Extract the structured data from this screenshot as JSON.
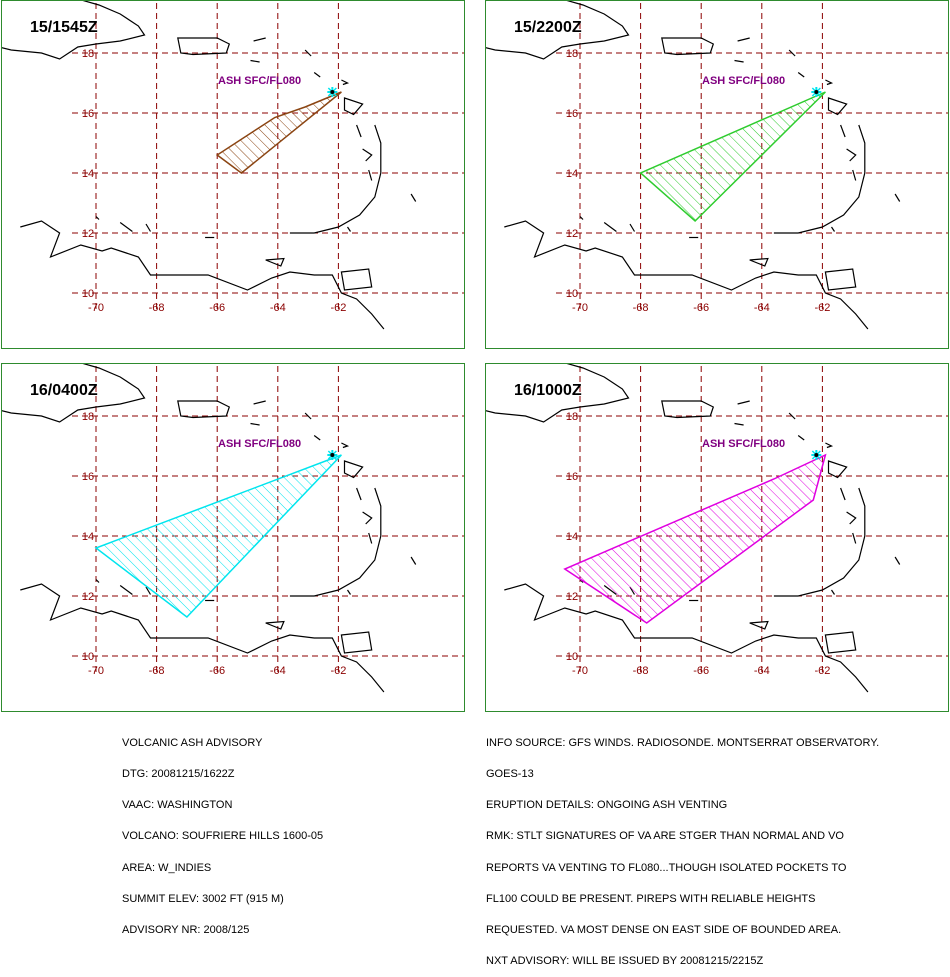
{
  "map": {
    "extent_lon": [
      -71,
      -59
    ],
    "extent_lat": [
      8.5,
      19.5
    ],
    "lon_ticks": [
      "-70",
      "-68",
      "-66",
      "-64",
      "-62"
    ],
    "lat_ticks": [
      "18",
      "16",
      "14",
      "12",
      "10"
    ],
    "gridline_color": "#8b0000",
    "coast_color": "#000000",
    "volcano_color": "#00e5ee",
    "ash_layer_label": "ASH SFC/FL080"
  },
  "panels": [
    {
      "time_label": "15/1545Z",
      "polygon_color": "#8b4513",
      "polygon": [
        [
          -61.9,
          16.7
        ],
        [
          -63.1,
          16.2
        ],
        [
          -64.1,
          15.85
        ],
        [
          -66.0,
          14.6
        ],
        [
          -65.2,
          14.0
        ],
        [
          -61.9,
          16.7
        ]
      ]
    },
    {
      "time_label": "15/2200Z",
      "polygon_color": "#2ecc2e",
      "polygon": [
        [
          -61.9,
          16.7
        ],
        [
          -68.0,
          14.0
        ],
        [
          -66.2,
          12.4
        ],
        [
          -61.9,
          16.7
        ]
      ]
    },
    {
      "time_label": "16/0400Z",
      "polygon_color": "#00e5ee",
      "polygon": [
        [
          -61.9,
          16.7
        ],
        [
          -70.0,
          13.6
        ],
        [
          -67.0,
          11.3
        ],
        [
          -61.9,
          16.7
        ]
      ]
    },
    {
      "time_label": "16/1000Z",
      "polygon_color": "#e000e0",
      "polygon": [
        [
          -61.9,
          16.7
        ],
        [
          -62.3,
          15.2
        ],
        [
          -67.8,
          11.1
        ],
        [
          -70.5,
          12.9
        ],
        [
          -63.6,
          15.9
        ],
        [
          -61.9,
          16.7
        ]
      ]
    }
  ],
  "advisory_left": {
    "lines": [
      "VOLCANIC ASH ADVISORY",
      "DTG: 20081215/1622Z",
      "VAAC: WASHINGTON",
      "VOLCANO: SOUFRIERE HILLS 1600-05",
      "AREA: W_INDIES",
      "SUMMIT ELEV: 3002 FT (915 M)",
      "ADVISORY NR: 2008/125"
    ]
  },
  "advisory_right": {
    "lines": [
      "INFO SOURCE: GFS WINDS. RADIOSONDE. MONTSERRAT OBSERVATORY.",
      "GOES-13",
      "ERUPTION DETAILS: ONGOING ASH VENTING",
      "RMK: STLT SIGNATURES OF VA ARE STGER THAN NORMAL AND VO",
      "REPORTS VA VENTING TO FL080...THOUGH ISOLATED POCKETS TO",
      "FL100 COULD BE PRESENT. PIREPS WITH RELIABLE HEIGHTS",
      "REQUESTED. VA MOST DENSE ON EAST SIDE OF BOUNDED AREA.",
      "NXT ADVISORY: WILL BE ISSUED BY 20081215/2215Z"
    ]
  }
}
